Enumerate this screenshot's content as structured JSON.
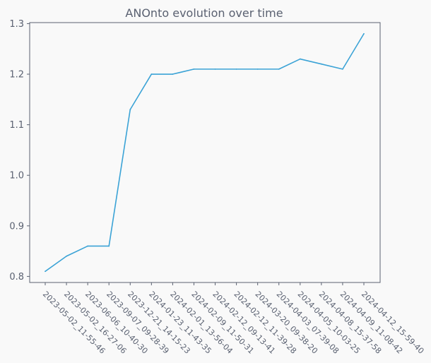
{
  "chart_data": {
    "type": "line",
    "title": "ANOnto evolution over time",
    "xlabel": "",
    "ylabel": "",
    "categories": [
      "2023-05-02_11-55-46",
      "2023-05-02_16-27-06",
      "2023-06-06_10-40-30",
      "2023-09-07_09-28-39",
      "2023-12-21_14-15-23",
      "2024-01-23_11-43-35",
      "2024-02-01_13-56-04",
      "2024-02-09_11-50-31",
      "2024-02-12_09-13-41",
      "2024-02-12_11-39-28",
      "2024-03-20_09-38-20",
      "2024-04-03_07-39-08",
      "2024-04-05_10-03-25",
      "2024-04-08_15-37-58",
      "2024-04-09_11-08-42",
      "2024-04-12_15-59-40"
    ],
    "series": [
      {
        "values": [
          0.81,
          0.84,
          0.86,
          0.86,
          1.13,
          1.2,
          1.2,
          1.21,
          1.21,
          1.21,
          1.21,
          1.21,
          1.23,
          1.22,
          1.21,
          1.28
        ]
      }
    ],
    "yticks": [
      0.8,
      0.9,
      1.0,
      1.1,
      1.2,
      1.3
    ],
    "ytick_labels": [
      "0.8",
      "0.9",
      "1.0",
      "1.1",
      "1.2",
      "1.3"
    ],
    "ylim": [
      0.788,
      1.302
    ],
    "grid": false,
    "line_color": "#3ba3d6"
  }
}
